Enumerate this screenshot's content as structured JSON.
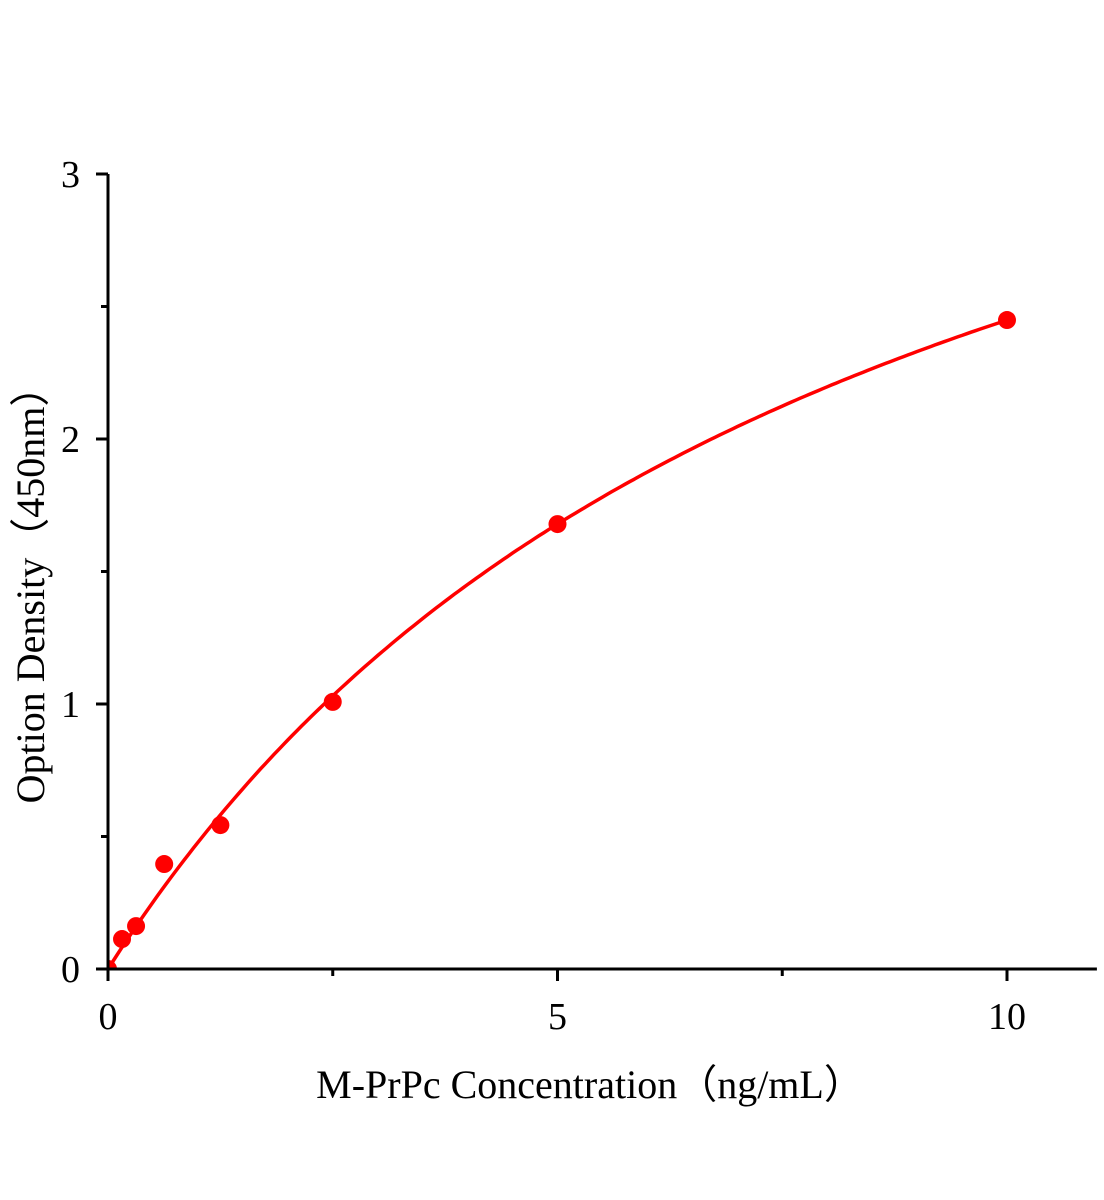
{
  "chart_data": {
    "type": "scatter",
    "title": "",
    "xlabel": "M-PrPc Concentration（ng/mL）",
    "ylabel": "Option Density（450nm）",
    "xlim": [
      0,
      11
    ],
    "ylim": [
      0,
      3
    ],
    "x_ticks": [
      0,
      5,
      10
    ],
    "x_tick_labels": [
      "0",
      "5",
      "10"
    ],
    "x_minor_ticks": [
      2.5,
      7.5
    ],
    "y_ticks": [
      0,
      1,
      2,
      3
    ],
    "y_tick_labels": [
      "0",
      "1",
      "2",
      "3"
    ],
    "y_minor_ticks": [
      0.5,
      1.5,
      2.5
    ],
    "grid": false,
    "legend": "none",
    "color": "#ff0000",
    "series": [
      {
        "x": [
          0,
          0.156,
          0.312,
          0.625,
          1.25,
          2.5,
          5,
          10
        ],
        "y": [
          0,
          0.113,
          0.162,
          0.396,
          0.543,
          1.008,
          1.679,
          2.449
        ],
        "fit_line": true
      }
    ]
  }
}
